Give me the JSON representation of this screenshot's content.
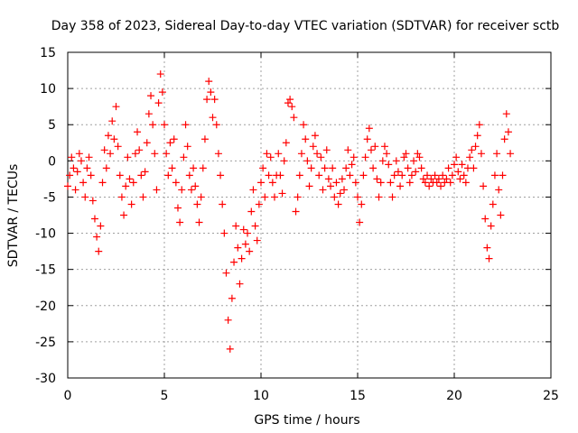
{
  "chart_data": {
    "type": "scatter",
    "title": "Day 358 of 2023, Sidereal Day-to-day VTEC variation (SDTVAR) for receiver sctb",
    "xlabel": "GPS time / hours",
    "ylabel": "SDTVAR / TECUs",
    "xlim": [
      0,
      25
    ],
    "ylim": [
      -30,
      15
    ],
    "xticks": [
      0,
      5,
      10,
      15,
      20,
      25
    ],
    "yticks": [
      -30,
      -25,
      -20,
      -15,
      -10,
      -5,
      0,
      5,
      10,
      15
    ],
    "grid": true,
    "marker": "+",
    "color": "#ff0000",
    "series": [
      {
        "name": "SDTVAR",
        "points": [
          [
            0.0,
            -3.5
          ],
          [
            0.1,
            -2.0
          ],
          [
            0.2,
            0.5
          ],
          [
            0.3,
            -1.0
          ],
          [
            0.4,
            -4.0
          ],
          [
            0.5,
            -1.5
          ],
          [
            0.6,
            1.0
          ],
          [
            0.7,
            0.0
          ],
          [
            0.8,
            -3.0
          ],
          [
            0.9,
            -5.0
          ],
          [
            1.0,
            -1.0
          ],
          [
            1.1,
            0.5
          ],
          [
            1.2,
            -2.0
          ],
          [
            1.3,
            -5.5
          ],
          [
            1.4,
            -8.0
          ],
          [
            1.5,
            -10.5
          ],
          [
            1.6,
            -12.5
          ],
          [
            1.7,
            -9.0
          ],
          [
            1.8,
            -3.0
          ],
          [
            1.9,
            1.5
          ],
          [
            2.0,
            -1.0
          ],
          [
            2.1,
            3.5
          ],
          [
            2.2,
            1.0
          ],
          [
            2.3,
            5.5
          ],
          [
            2.4,
            3.0
          ],
          [
            2.5,
            7.5
          ],
          [
            2.6,
            2.0
          ],
          [
            2.7,
            -2.0
          ],
          [
            2.8,
            -5.0
          ],
          [
            2.9,
            -7.5
          ],
          [
            3.0,
            -3.5
          ],
          [
            3.1,
            0.5
          ],
          [
            3.2,
            -2.5
          ],
          [
            3.3,
            -6.0
          ],
          [
            3.4,
            -3.0
          ],
          [
            3.5,
            1.0
          ],
          [
            3.6,
            4.0
          ],
          [
            3.7,
            1.5
          ],
          [
            3.8,
            -2.0
          ],
          [
            3.9,
            -5.0
          ],
          [
            4.0,
            -1.5
          ],
          [
            4.1,
            2.5
          ],
          [
            4.2,
            6.5
          ],
          [
            4.3,
            9.0
          ],
          [
            4.4,
            5.0
          ],
          [
            4.5,
            1.0
          ],
          [
            4.6,
            -4.0
          ],
          [
            4.7,
            8.0
          ],
          [
            4.8,
            12.0
          ],
          [
            4.9,
            9.5
          ],
          [
            5.0,
            5.0
          ],
          [
            5.1,
            1.0
          ],
          [
            5.2,
            -2.0
          ],
          [
            5.3,
            2.5
          ],
          [
            5.4,
            -1.0
          ],
          [
            5.5,
            3.0
          ],
          [
            5.6,
            -3.0
          ],
          [
            5.7,
            -6.5
          ],
          [
            5.8,
            -8.5
          ],
          [
            5.9,
            -4.0
          ],
          [
            6.0,
            0.5
          ],
          [
            6.1,
            5.0
          ],
          [
            6.2,
            2.0
          ],
          [
            6.3,
            -2.0
          ],
          [
            6.4,
            -4.0
          ],
          [
            6.5,
            -1.0
          ],
          [
            6.6,
            -3.5
          ],
          [
            6.7,
            -6.0
          ],
          [
            6.8,
            -8.5
          ],
          [
            6.9,
            -5.0
          ],
          [
            7.0,
            -1.0
          ],
          [
            7.1,
            3.0
          ],
          [
            7.2,
            8.5
          ],
          [
            7.3,
            11.0
          ],
          [
            7.4,
            9.5
          ],
          [
            7.5,
            6.0
          ],
          [
            7.6,
            8.5
          ],
          [
            7.7,
            5.0
          ],
          [
            7.8,
            1.0
          ],
          [
            7.9,
            -2.0
          ],
          [
            8.0,
            -6.0
          ],
          [
            8.1,
            -10.0
          ],
          [
            8.2,
            -15.5
          ],
          [
            8.3,
            -22.0
          ],
          [
            8.4,
            -26.0
          ],
          [
            8.5,
            -19.0
          ],
          [
            8.6,
            -14.0
          ],
          [
            8.7,
            -9.0
          ],
          [
            8.8,
            -12.0
          ],
          [
            8.9,
            -17.0
          ],
          [
            9.0,
            -13.5
          ],
          [
            9.1,
            -9.5
          ],
          [
            9.2,
            -11.5
          ],
          [
            9.3,
            -10.0
          ],
          [
            9.4,
            -12.5
          ],
          [
            9.5,
            -7.0
          ],
          [
            9.6,
            -4.0
          ],
          [
            9.7,
            -9.0
          ],
          [
            9.8,
            -11.0
          ],
          [
            9.9,
            -6.0
          ],
          [
            10.0,
            -3.0
          ],
          [
            10.1,
            -1.0
          ],
          [
            10.2,
            -5.0
          ],
          [
            10.3,
            1.0
          ],
          [
            10.4,
            -2.0
          ],
          [
            10.5,
            0.5
          ],
          [
            10.6,
            -3.0
          ],
          [
            10.7,
            -5.0
          ],
          [
            10.8,
            -2.0
          ],
          [
            10.9,
            1.0
          ],
          [
            11.0,
            -2.0
          ],
          [
            11.1,
            -4.5
          ],
          [
            11.2,
            0.0
          ],
          [
            11.3,
            2.5
          ],
          [
            11.4,
            8.0
          ],
          [
            11.5,
            8.5
          ],
          [
            11.6,
            7.5
          ],
          [
            11.7,
            6.0
          ],
          [
            11.8,
            -7.0
          ],
          [
            11.9,
            -5.0
          ],
          [
            12.0,
            -2.0
          ],
          [
            12.1,
            1.0
          ],
          [
            12.2,
            5.0
          ],
          [
            12.3,
            3.0
          ],
          [
            12.4,
            0.0
          ],
          [
            12.5,
            -3.5
          ],
          [
            12.6,
            -1.0
          ],
          [
            12.7,
            2.0
          ],
          [
            12.8,
            3.5
          ],
          [
            12.9,
            1.0
          ],
          [
            13.0,
            -2.0
          ],
          [
            13.1,
            0.5
          ],
          [
            13.2,
            -4.0
          ],
          [
            13.3,
            -1.0
          ],
          [
            13.4,
            1.5
          ],
          [
            13.5,
            -2.5
          ],
          [
            13.6,
            -3.5
          ],
          [
            13.7,
            -1.0
          ],
          [
            13.8,
            -5.0
          ],
          [
            13.9,
            -3.0
          ],
          [
            14.0,
            -6.0
          ],
          [
            14.1,
            -4.5
          ],
          [
            14.2,
            -2.5
          ],
          [
            14.3,
            -4.0
          ],
          [
            14.4,
            -1.0
          ],
          [
            14.5,
            1.5
          ],
          [
            14.6,
            -2.0
          ],
          [
            14.7,
            -0.5
          ],
          [
            14.8,
            0.5
          ],
          [
            14.9,
            -3.0
          ],
          [
            15.0,
            -5.0
          ],
          [
            15.1,
            -8.5
          ],
          [
            15.2,
            -6.0
          ],
          [
            15.3,
            -2.0
          ],
          [
            15.4,
            0.5
          ],
          [
            15.5,
            3.0
          ],
          [
            15.6,
            4.5
          ],
          [
            15.7,
            1.5
          ],
          [
            15.8,
            -1.0
          ],
          [
            15.9,
            2.0
          ],
          [
            16.0,
            -2.5
          ],
          [
            16.1,
            -5.0
          ],
          [
            16.2,
            -3.0
          ],
          [
            16.3,
            0.0
          ],
          [
            16.4,
            2.0
          ],
          [
            16.5,
            1.0
          ],
          [
            16.6,
            -0.5
          ],
          [
            16.7,
            -3.0
          ],
          [
            16.8,
            -5.0
          ],
          [
            16.9,
            -2.0
          ],
          [
            17.0,
            0.0
          ],
          [
            17.1,
            -1.5
          ],
          [
            17.2,
            -3.5
          ],
          [
            17.3,
            -2.0
          ],
          [
            17.4,
            0.5
          ],
          [
            17.5,
            1.0
          ],
          [
            17.6,
            -1.0
          ],
          [
            17.7,
            -3.0
          ],
          [
            17.8,
            -2.0
          ],
          [
            17.9,
            0.0
          ],
          [
            18.0,
            -1.5
          ],
          [
            18.1,
            1.0
          ],
          [
            18.2,
            0.5
          ],
          [
            18.3,
            -1.0
          ],
          [
            18.4,
            -2.5
          ],
          [
            18.5,
            -3.0
          ],
          [
            18.6,
            -2.0
          ],
          [
            18.7,
            -3.5
          ],
          [
            18.8,
            -2.5
          ],
          [
            18.9,
            -3.0
          ],
          [
            19.0,
            -2.0
          ],
          [
            19.1,
            -3.0
          ],
          [
            19.2,
            -2.5
          ],
          [
            19.3,
            -3.5
          ],
          [
            19.4,
            -2.0
          ],
          [
            19.5,
            -3.0
          ],
          [
            19.6,
            -2.5
          ],
          [
            19.7,
            -1.0
          ],
          [
            19.8,
            -3.0
          ],
          [
            19.9,
            -2.0
          ],
          [
            20.0,
            -0.5
          ],
          [
            20.1,
            0.5
          ],
          [
            20.2,
            -1.5
          ],
          [
            20.3,
            -2.5
          ],
          [
            20.4,
            -0.5
          ],
          [
            20.5,
            -2.0
          ],
          [
            20.6,
            -3.0
          ],
          [
            20.7,
            -1.0
          ],
          [
            20.8,
            0.5
          ],
          [
            20.9,
            1.5
          ],
          [
            21.0,
            -1.0
          ],
          [
            21.1,
            2.0
          ],
          [
            21.2,
            3.5
          ],
          [
            21.3,
            5.0
          ],
          [
            21.4,
            1.0
          ],
          [
            21.5,
            -3.5
          ],
          [
            21.6,
            -8.0
          ],
          [
            21.7,
            -12.0
          ],
          [
            21.8,
            -13.5
          ],
          [
            21.9,
            -9.0
          ],
          [
            22.0,
            -6.0
          ],
          [
            22.1,
            -2.0
          ],
          [
            22.2,
            1.0
          ],
          [
            22.3,
            -4.0
          ],
          [
            22.4,
            -7.5
          ],
          [
            22.5,
            -2.0
          ],
          [
            22.6,
            3.0
          ],
          [
            22.7,
            6.5
          ],
          [
            22.8,
            4.0
          ],
          [
            22.9,
            1.0
          ]
        ]
      }
    ]
  }
}
